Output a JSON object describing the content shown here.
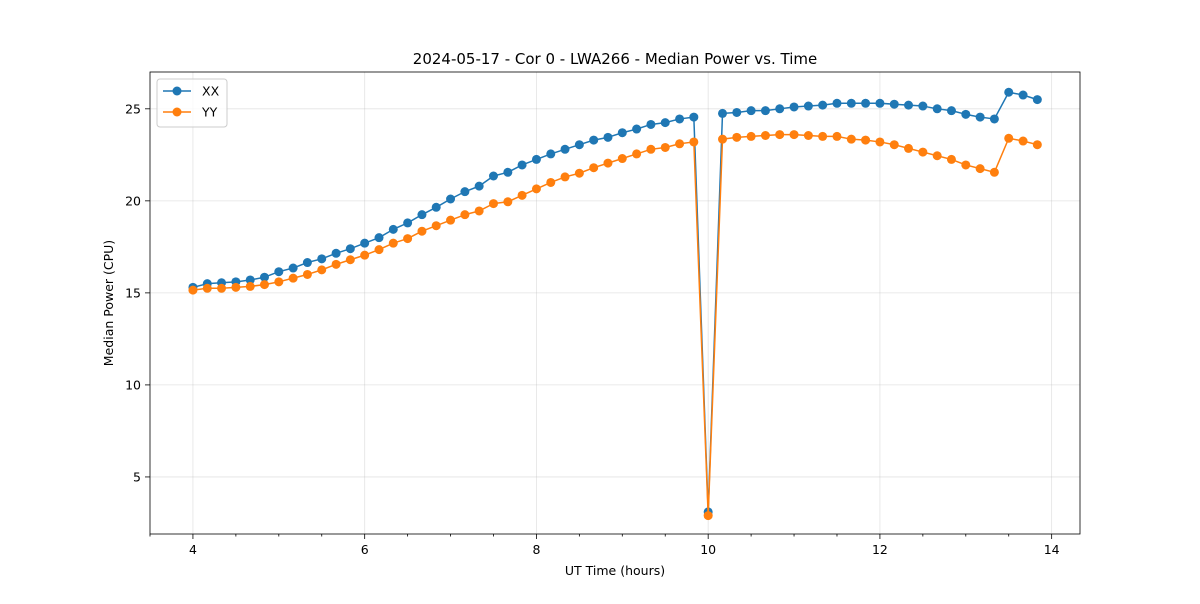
{
  "chart_data": {
    "type": "line",
    "title": "2024-05-17 - Cor 0 - LWA266 - Median Power vs. Time",
    "xlabel": "UT Time (hours)",
    "ylabel": "Median Power (CPU)",
    "xlim": [
      3.5,
      14.33
    ],
    "ylim": [
      1.9,
      27.0
    ],
    "xticks": [
      4,
      6,
      8,
      10,
      12,
      14
    ],
    "yticks": [
      5,
      10,
      15,
      20,
      25
    ],
    "grid": true,
    "legend_position": "upper-left",
    "x": [
      4.0,
      4.167,
      4.333,
      4.5,
      4.667,
      4.833,
      5.0,
      5.167,
      5.333,
      5.5,
      5.667,
      5.833,
      6.0,
      6.167,
      6.333,
      6.5,
      6.667,
      6.833,
      7.0,
      7.167,
      7.333,
      7.5,
      7.667,
      7.833,
      8.0,
      8.167,
      8.333,
      8.5,
      8.667,
      8.833,
      9.0,
      9.167,
      9.333,
      9.5,
      9.667,
      9.833,
      10.0,
      10.167,
      10.333,
      10.5,
      10.667,
      10.833,
      11.0,
      11.167,
      11.333,
      11.5,
      11.667,
      11.833,
      12.0,
      12.167,
      12.333,
      12.5,
      12.667,
      12.833,
      13.0,
      13.167,
      13.333,
      13.5,
      13.667,
      13.833
    ],
    "series": [
      {
        "name": "XX",
        "color": "#1f77b4",
        "values": [
          15.3,
          15.5,
          15.55,
          15.6,
          15.7,
          15.85,
          16.15,
          16.35,
          16.65,
          16.85,
          17.15,
          17.4,
          17.7,
          18.0,
          18.45,
          18.8,
          19.25,
          19.65,
          20.1,
          20.5,
          20.8,
          21.35,
          21.55,
          21.95,
          22.25,
          22.55,
          22.8,
          23.05,
          23.3,
          23.45,
          23.7,
          23.9,
          24.15,
          24.25,
          24.45,
          24.55,
          3.1,
          24.75,
          24.8,
          24.9,
          24.9,
          25.0,
          25.1,
          25.15,
          25.2,
          25.3,
          25.3,
          25.3,
          25.3,
          25.25,
          25.2,
          25.15,
          25.0,
          24.9,
          24.7,
          24.55,
          24.45,
          25.9,
          25.75,
          25.5
        ]
      },
      {
        "name": "YY",
        "color": "#ff7f0e",
        "values": [
          15.15,
          15.25,
          15.25,
          15.3,
          15.35,
          15.45,
          15.6,
          15.8,
          16.0,
          16.25,
          16.55,
          16.8,
          17.05,
          17.35,
          17.7,
          17.95,
          18.35,
          18.65,
          18.95,
          19.25,
          19.45,
          19.85,
          19.95,
          20.3,
          20.65,
          21.0,
          21.3,
          21.5,
          21.8,
          22.05,
          22.3,
          22.55,
          22.8,
          22.9,
          23.1,
          23.2,
          2.9,
          23.35,
          23.45,
          23.5,
          23.55,
          23.6,
          23.6,
          23.55,
          23.5,
          23.5,
          23.35,
          23.3,
          23.2,
          23.05,
          22.85,
          22.65,
          22.45,
          22.25,
          21.95,
          21.75,
          21.55,
          23.4,
          23.25,
          23.05
        ]
      }
    ]
  }
}
